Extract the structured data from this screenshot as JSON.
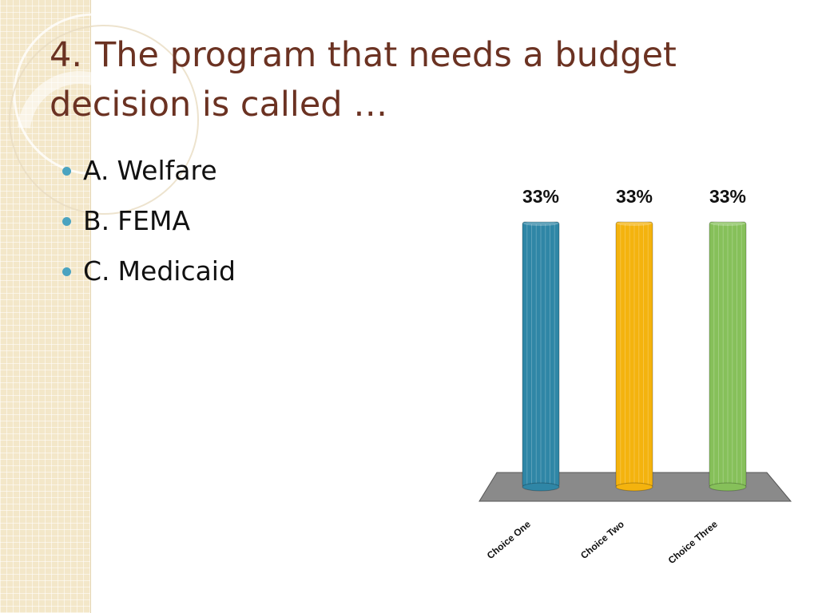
{
  "slide": {
    "title_number": "4.",
    "title_text": "The program that needs a budget decision is called …",
    "options": [
      {
        "letter": "A.",
        "text": "Welfare"
      },
      {
        "letter": "B.",
        "text": "FEMA"
      },
      {
        "letter": "C.",
        "text": "Medicaid"
      }
    ]
  },
  "colors": {
    "title": "#6b3222",
    "bullet": "#4aa3c0",
    "bar_one": "#2f86a6",
    "bar_two": "#f4b30e",
    "bar_three": "#86c05a",
    "floor": "#8a8a8a"
  },
  "chart_data": {
    "type": "bar",
    "categories": [
      "Choice One",
      "Choice Two",
      "Choice Three"
    ],
    "values": [
      33,
      33,
      33
    ],
    "value_labels": [
      "33%",
      "33%",
      "33%"
    ],
    "ylim": [
      0,
      33
    ],
    "title": "",
    "xlabel": "",
    "ylabel": ""
  }
}
